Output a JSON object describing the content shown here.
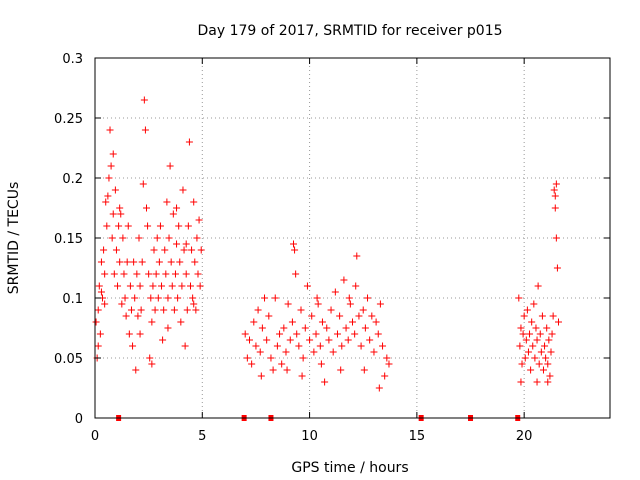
{
  "chart_data": {
    "type": "scatter",
    "title": "Day 179 of 2017, SRMTID for receiver p015",
    "xlabel": "GPS time / hours",
    "ylabel": "SRMTID / TECUs",
    "xlim": [
      0,
      24
    ],
    "ylim": [
      0,
      0.3
    ],
    "xticks": [
      "0",
      "5",
      "10",
      "15",
      "20"
    ],
    "yticks": [
      "0",
      "0.05",
      "0.1",
      "0.15",
      "0.2",
      "0.25",
      "0.3"
    ],
    "xtick_values": [
      0,
      5,
      10,
      15,
      20
    ],
    "ytick_values": [
      0,
      0.05,
      0.1,
      0.15,
      0.2,
      0.25,
      0.3
    ],
    "grid": true,
    "marker": "+",
    "series_color": "#ff0000",
    "series": [
      {
        "name": "SRMTID",
        "points": [
          [
            0.05,
            0.08
          ],
          [
            0.1,
            0.05
          ],
          [
            0.15,
            0.09
          ],
          [
            0.2,
            0.11
          ],
          [
            0.25,
            0.07
          ],
          [
            0.3,
            0.13
          ],
          [
            0.35,
            0.1
          ],
          [
            0.4,
            0.14
          ],
          [
            0.45,
            0.12
          ],
          [
            0.5,
            0.18
          ],
          [
            0.55,
            0.16
          ],
          [
            0.6,
            0.185
          ],
          [
            0.65,
            0.2
          ],
          [
            0.7,
            0.24
          ],
          [
            0.75,
            0.21
          ],
          [
            0.8,
            0.15
          ],
          [
            0.85,
            0.17
          ],
          [
            0.9,
            0.12
          ],
          [
            0.95,
            0.19
          ],
          [
            1.0,
            0.14
          ],
          [
            1.05,
            0.11
          ],
          [
            1.1,
            0.16
          ],
          [
            1.15,
            0.13
          ],
          [
            1.2,
            0.17
          ],
          [
            1.25,
            0.095
          ],
          [
            1.3,
            0.15
          ],
          [
            1.35,
            0.12
          ],
          [
            1.4,
            0.1
          ],
          [
            1.45,
            0.085
          ],
          [
            1.5,
            0.13
          ],
          [
            1.55,
            0.16
          ],
          [
            1.6,
            0.07
          ],
          [
            1.65,
            0.11
          ],
          [
            1.7,
            0.09
          ],
          [
            1.75,
            0.06
          ],
          [
            1.8,
            0.13
          ],
          [
            1.85,
            0.1
          ],
          [
            1.9,
            0.04
          ],
          [
            1.95,
            0.12
          ],
          [
            2.0,
            0.085
          ],
          [
            2.05,
            0.15
          ],
          [
            2.1,
            0.11
          ],
          [
            2.15,
            0.09
          ],
          [
            2.2,
            0.13
          ],
          [
            2.25,
            0.195
          ],
          [
            2.3,
            0.265
          ],
          [
            2.35,
            0.24
          ],
          [
            2.4,
            0.175
          ],
          [
            2.45,
            0.16
          ],
          [
            2.5,
            0.12
          ],
          [
            2.55,
            0.05
          ],
          [
            2.6,
            0.1
          ],
          [
            2.65,
            0.08
          ],
          [
            2.7,
            0.11
          ],
          [
            2.75,
            0.14
          ],
          [
            2.8,
            0.09
          ],
          [
            2.85,
            0.12
          ],
          [
            2.9,
            0.15
          ],
          [
            2.95,
            0.1
          ],
          [
            3.0,
            0.13
          ],
          [
            3.05,
            0.16
          ],
          [
            3.1,
            0.11
          ],
          [
            3.15,
            0.065
          ],
          [
            3.2,
            0.09
          ],
          [
            3.25,
            0.14
          ],
          [
            3.3,
            0.12
          ],
          [
            3.35,
            0.18
          ],
          [
            3.4,
            0.1
          ],
          [
            3.45,
            0.15
          ],
          [
            3.5,
            0.21
          ],
          [
            3.55,
            0.13
          ],
          [
            3.6,
            0.11
          ],
          [
            3.65,
            0.17
          ],
          [
            3.7,
            0.09
          ],
          [
            3.75,
            0.12
          ],
          [
            3.8,
            0.145
          ],
          [
            3.85,
            0.1
          ],
          [
            3.9,
            0.16
          ],
          [
            3.95,
            0.13
          ],
          [
            4.0,
            0.08
          ],
          [
            4.05,
            0.11
          ],
          [
            4.1,
            0.19
          ],
          [
            4.15,
            0.14
          ],
          [
            4.2,
            0.06
          ],
          [
            4.25,
            0.12
          ],
          [
            4.3,
            0.09
          ],
          [
            4.35,
            0.16
          ],
          [
            4.4,
            0.23
          ],
          [
            4.45,
            0.11
          ],
          [
            4.5,
            0.14
          ],
          [
            4.55,
            0.1
          ],
          [
            4.6,
            0.18
          ],
          [
            4.65,
            0.13
          ],
          [
            4.7,
            0.09
          ],
          [
            4.75,
            0.15
          ],
          [
            4.8,
            0.12
          ],
          [
            4.85,
            0.165
          ],
          [
            4.9,
            0.11
          ],
          [
            4.95,
            0.14
          ],
          [
            0.15,
            0.06
          ],
          [
            0.45,
            0.095
          ],
          [
            0.85,
            0.22
          ],
          [
            1.15,
            0.175
          ],
          [
            2.1,
            0.07
          ],
          [
            2.65,
            0.045
          ],
          [
            3.4,
            0.075
          ],
          [
            4.25,
            0.145
          ],
          [
            4.6,
            0.095
          ],
          [
            0.3,
            0.105
          ],
          [
            3.8,
            0.175
          ],
          [
            7.0,
            0.07
          ],
          [
            7.1,
            0.05
          ],
          [
            7.2,
            0.065
          ],
          [
            7.3,
            0.045
          ],
          [
            7.4,
            0.08
          ],
          [
            7.5,
            0.06
          ],
          [
            7.6,
            0.09
          ],
          [
            7.7,
            0.055
          ],
          [
            7.8,
            0.075
          ],
          [
            7.9,
            0.1
          ],
          [
            8.0,
            0.065
          ],
          [
            8.1,
            0.085
          ],
          [
            8.2,
            0.05
          ],
          [
            8.3,
            0.04
          ],
          [
            8.5,
            0.06
          ],
          [
            8.6,
            0.07
          ],
          [
            8.7,
            0.045
          ],
          [
            8.8,
            0.075
          ],
          [
            8.9,
            0.055
          ],
          [
            9.0,
            0.095
          ],
          [
            9.1,
            0.065
          ],
          [
            9.2,
            0.08
          ],
          [
            9.3,
            0.14
          ],
          [
            9.35,
            0.12
          ],
          [
            9.4,
            0.07
          ],
          [
            9.5,
            0.06
          ],
          [
            9.6,
            0.09
          ],
          [
            9.7,
            0.05
          ],
          [
            9.8,
            0.075
          ],
          [
            9.9,
            0.11
          ],
          [
            10.0,
            0.065
          ],
          [
            10.1,
            0.085
          ],
          [
            10.2,
            0.055
          ],
          [
            10.3,
            0.07
          ],
          [
            10.4,
            0.095
          ],
          [
            10.5,
            0.06
          ],
          [
            10.6,
            0.08
          ],
          [
            10.7,
            0.03
          ],
          [
            10.8,
            0.075
          ],
          [
            10.9,
            0.065
          ],
          [
            11.0,
            0.09
          ],
          [
            11.1,
            0.055
          ],
          [
            11.2,
            0.105
          ],
          [
            11.3,
            0.07
          ],
          [
            11.4,
            0.085
          ],
          [
            11.5,
            0.06
          ],
          [
            11.6,
            0.115
          ],
          [
            11.7,
            0.075
          ],
          [
            11.8,
            0.065
          ],
          [
            11.9,
            0.095
          ],
          [
            12.0,
            0.08
          ],
          [
            12.1,
            0.07
          ],
          [
            12.2,
            0.135
          ],
          [
            12.3,
            0.085
          ],
          [
            12.4,
            0.06
          ],
          [
            12.5,
            0.09
          ],
          [
            12.6,
            0.075
          ],
          [
            12.7,
            0.1
          ],
          [
            12.8,
            0.065
          ],
          [
            12.9,
            0.085
          ],
          [
            13.0,
            0.055
          ],
          [
            13.1,
            0.08
          ],
          [
            13.2,
            0.07
          ],
          [
            13.3,
            0.095
          ],
          [
            13.4,
            0.06
          ],
          [
            13.5,
            0.035
          ],
          [
            13.6,
            0.05
          ],
          [
            13.7,
            0.045
          ],
          [
            8.4,
            0.1
          ],
          [
            9.25,
            0.145
          ],
          [
            10.55,
            0.045
          ],
          [
            11.45,
            0.04
          ],
          [
            12.55,
            0.04
          ],
          [
            13.25,
            0.025
          ],
          [
            7.75,
            0.035
          ],
          [
            9.65,
            0.035
          ],
          [
            12.15,
            0.11
          ],
          [
            11.85,
            0.1
          ],
          [
            10.35,
            0.1
          ],
          [
            8.95,
            0.04
          ],
          [
            19.75,
            0.1
          ],
          [
            19.8,
            0.06
          ],
          [
            19.85,
            0.075
          ],
          [
            19.9,
            0.045
          ],
          [
            19.95,
            0.07
          ],
          [
            20.0,
            0.085
          ],
          [
            20.05,
            0.05
          ],
          [
            20.1,
            0.065
          ],
          [
            20.15,
            0.09
          ],
          [
            20.2,
            0.055
          ],
          [
            20.25,
            0.07
          ],
          [
            20.3,
            0.04
          ],
          [
            20.35,
            0.08
          ],
          [
            20.4,
            0.06
          ],
          [
            20.45,
            0.095
          ],
          [
            20.5,
            0.05
          ],
          [
            20.55,
            0.075
          ],
          [
            20.6,
            0.065
          ],
          [
            20.65,
            0.11
          ],
          [
            20.7,
            0.045
          ],
          [
            20.75,
            0.07
          ],
          [
            20.8,
            0.055
          ],
          [
            20.85,
            0.085
          ],
          [
            20.9,
            0.04
          ],
          [
            20.95,
            0.06
          ],
          [
            21.0,
            0.05
          ],
          [
            21.05,
            0.075
          ],
          [
            21.1,
            0.045
          ],
          [
            21.15,
            0.065
          ],
          [
            21.2,
            0.035
          ],
          [
            21.25,
            0.055
          ],
          [
            21.3,
            0.07
          ],
          [
            21.35,
            0.085
          ],
          [
            21.4,
            0.19
          ],
          [
            21.45,
            0.175
          ],
          [
            21.5,
            0.15
          ],
          [
            21.55,
            0.125
          ],
          [
            21.6,
            0.08
          ],
          [
            21.5,
            0.195
          ],
          [
            21.45,
            0.185
          ],
          [
            20.6,
            0.03
          ],
          [
            21.1,
            0.03
          ],
          [
            19.85,
            0.03
          ]
        ]
      }
    ],
    "baseline_markers_x": [
      1.1,
      6.95,
      8.2,
      15.2,
      17.5,
      19.7
    ]
  }
}
